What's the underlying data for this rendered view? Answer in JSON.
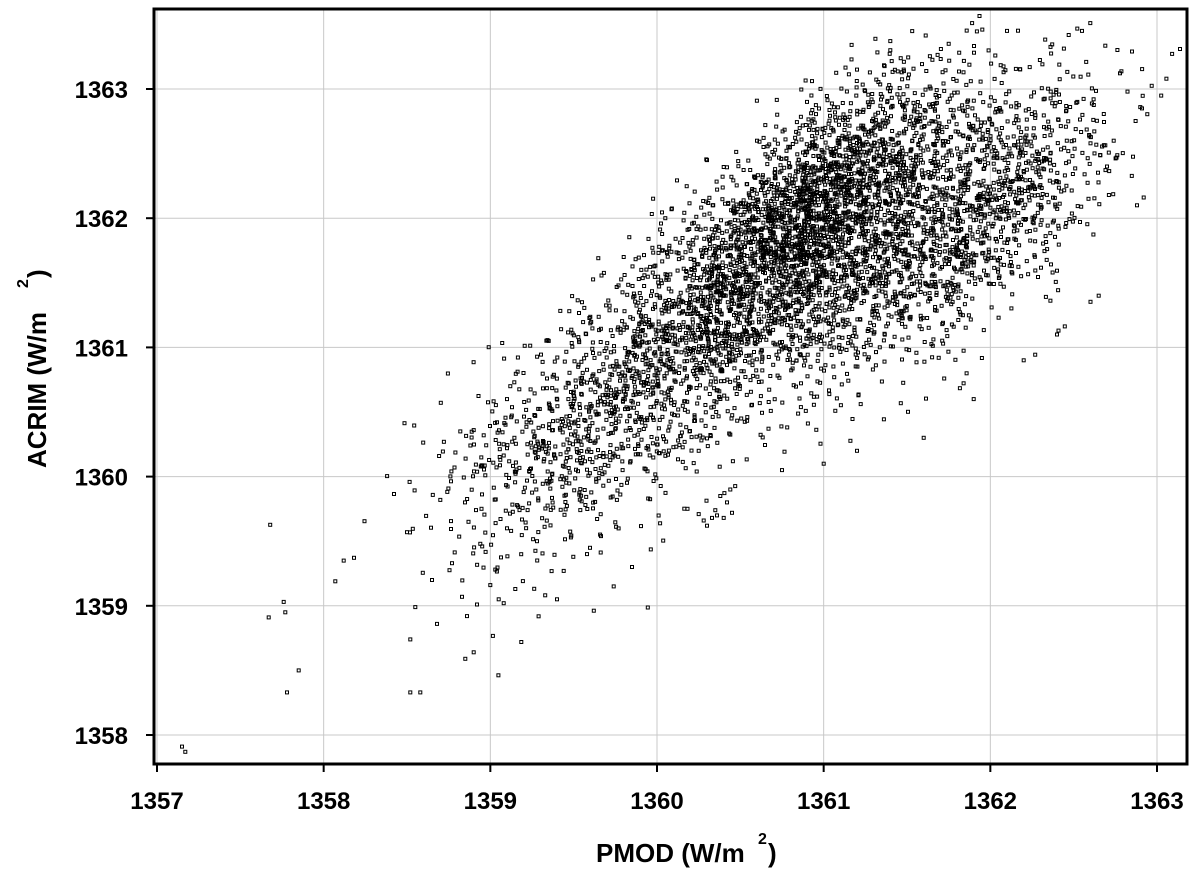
{
  "chart_data": {
    "type": "scatter",
    "title": "",
    "xlabel": {
      "text": "PMOD (W/m",
      "superscript": "2",
      "suffix": ")"
    },
    "ylabel": {
      "text": "ACRIM (W/m",
      "superscript": "2",
      "suffix": ")"
    },
    "xlim": [
      1357,
      1363.2
    ],
    "ylim": [
      1357.75,
      1363.6
    ],
    "xticks": [
      "1357",
      "1358",
      "1359",
      "1360",
      "1361",
      "1362",
      "1363"
    ],
    "yticks": [
      "1358",
      "1359",
      "1360",
      "1361",
      "1362",
      "1363"
    ],
    "grid": true,
    "legend": "none",
    "marker": "open-square",
    "colors": {
      "points": "#000000",
      "grid": "#c8c8c8",
      "frame": "#000000"
    },
    "series": [
      {
        "points": [
          [
            1357.15,
            1357.91
          ],
          [
            1357.17,
            1357.87
          ],
          [
            1357.67,
            1358.91
          ],
          [
            1357.76,
            1359.03
          ],
          [
            1357.77,
            1358.95
          ],
          [
            1357.78,
            1358.33
          ],
          [
            1357.85,
            1358.5
          ],
          [
            1358.07,
            1359.19
          ],
          [
            1358.12,
            1359.35
          ],
          [
            1358.5,
            1359.57
          ],
          [
            1358.52,
            1358.74
          ],
          [
            1358.52,
            1358.33
          ],
          [
            1358.55,
            1358.99
          ],
          [
            1358.58,
            1358.33
          ],
          [
            1358.65,
            1359.2
          ],
          [
            1358.68,
            1358.86
          ],
          [
            1358.7,
            1359.82
          ],
          [
            1358.77,
            1359.33
          ],
          [
            1358.82,
            1360.35
          ],
          [
            1358.83,
            1359.07
          ],
          [
            1358.85,
            1358.59
          ],
          [
            1358.86,
            1358.92
          ],
          [
            1358.9,
            1358.64
          ],
          [
            1358.9,
            1360.36
          ],
          [
            1358.92,
            1359.01
          ],
          [
            1358.94,
            1359.48
          ],
          [
            1358.96,
            1360.32
          ],
          [
            1358.97,
            1360.01
          ],
          [
            1359.0,
            1359.16
          ],
          [
            1359.03,
            1359.28
          ],
          [
            1359.04,
            1360.42
          ],
          [
            1359.05,
            1359.05
          ],
          [
            1359.06,
            1360.13
          ],
          [
            1359.08,
            1359.02
          ],
          [
            1359.1,
            1359.6
          ],
          [
            1359.12,
            1360.7
          ],
          [
            1359.15,
            1359.13
          ],
          [
            1359.2,
            1359.88
          ],
          [
            1359.28,
            1359.5
          ],
          [
            1359.4,
            1359.05
          ],
          [
            1359.44,
            1359.27
          ],
          [
            1359.58,
            1359.4
          ],
          [
            1359.74,
            1359.15
          ],
          [
            1359.85,
            1359.3
          ],
          [
            1360.28,
            1359.66
          ],
          [
            1360.36,
            1359.7
          ],
          [
            1360.3,
            1359.62
          ],
          [
            1360.42,
            1359.8
          ],
          [
            1360.4,
            1359.68
          ],
          [
            1360.38,
            1359.85
          ],
          [
            1360.35,
            1359.74
          ],
          [
            1360.45,
            1359.72
          ],
          [
            1360.25,
            1359.71
          ],
          [
            1360.44,
            1359.9
          ],
          [
            1360.33,
            1359.68
          ],
          [
            1362.1,
            1363.45
          ],
          [
            1362.55,
            1363.45
          ],
          [
            1362.6,
            1363.51
          ],
          [
            1362.85,
            1363.29
          ],
          [
            1362.9,
            1362.86
          ],
          [
            1362.91,
            1362.85
          ],
          [
            1362.92,
            1362.16
          ],
          [
            1362.88,
            1362.1
          ],
          [
            1362.7,
            1362.4
          ],
          [
            1362.65,
            1361.4
          ],
          [
            1362.4,
            1361.1
          ],
          [
            1362.2,
            1360.9
          ],
          [
            1361.9,
            1360.6
          ],
          [
            1361.6,
            1360.3
          ],
          [
            1361.2,
            1360.2
          ],
          [
            1361.0,
            1360.1
          ],
          [
            1360.75,
            1360.05
          ],
          [
            1361.75,
            1363.35
          ],
          [
            1361.4,
            1363.3
          ],
          [
            1361.2,
            1363.15
          ],
          [
            1360.9,
            1362.9
          ],
          [
            1360.6,
            1362.6
          ],
          [
            1360.3,
            1362.45
          ],
          [
            1360.05,
            1362.0
          ],
          [
            1359.8,
            1361.7
          ],
          [
            1359.55,
            1361.35
          ],
          [
            1359.35,
            1361.05
          ],
          [
            1359.1,
            1360.6
          ]
        ],
        "density_clusters": [
          {
            "cx": 1359.9,
            "cy": 1360.8,
            "sx": 0.55,
            "sy": 0.55,
            "rho": 0.62,
            "n": 650
          },
          {
            "cx": 1360.6,
            "cy": 1361.45,
            "sx": 0.55,
            "sy": 0.6,
            "rho": 0.7,
            "n": 1500
          },
          {
            "cx": 1361.0,
            "cy": 1362.15,
            "sx": 0.45,
            "sy": 0.5,
            "rho": 0.7,
            "n": 1800
          },
          {
            "cx": 1361.55,
            "cy": 1361.65,
            "sx": 0.45,
            "sy": 0.5,
            "rho": 0.6,
            "n": 900
          },
          {
            "cx": 1362.1,
            "cy": 1362.3,
            "sx": 0.35,
            "sy": 0.45,
            "rho": 0.55,
            "n": 550
          },
          {
            "cx": 1359.5,
            "cy": 1360.1,
            "sx": 0.45,
            "sy": 0.45,
            "rho": 0.5,
            "n": 300
          }
        ]
      }
    ]
  }
}
